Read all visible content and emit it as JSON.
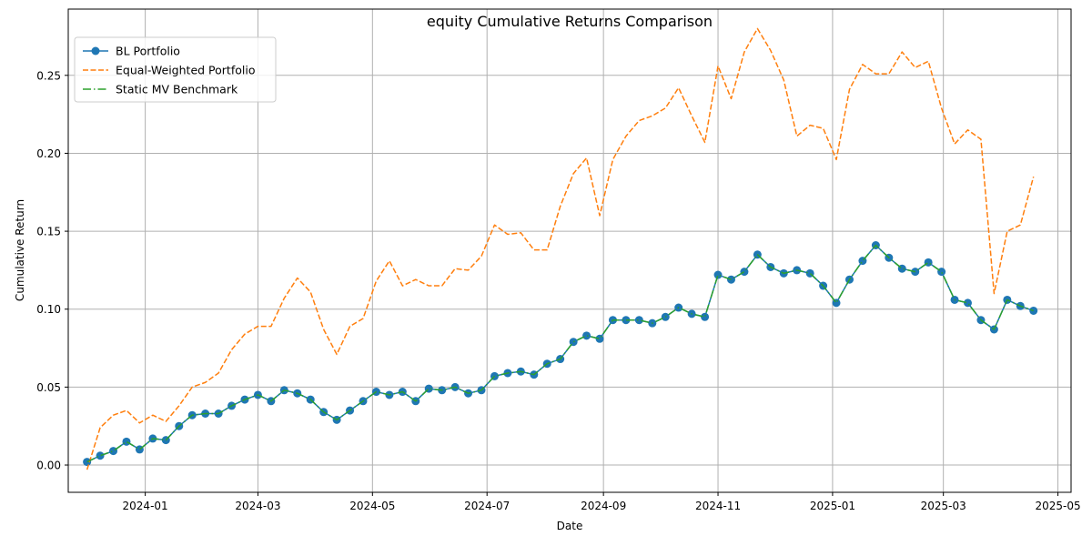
{
  "chart_data": {
    "type": "line",
    "title": "equity Cumulative Returns Comparison",
    "xlabel": "Date",
    "ylabel": "Cumulative Return",
    "grid": true,
    "legend_position": "top-left",
    "x_ticks": [
      "2024-01",
      "2024-03",
      "2024-05",
      "2024-07",
      "2024-09",
      "2024-11",
      "2025-01",
      "2025-03",
      "2025-05"
    ],
    "y_ticks": [
      "0.00",
      "0.05",
      "0.10",
      "0.15",
      "0.20",
      "0.25"
    ],
    "ylim": [
      -0.0175,
      0.2925
    ],
    "xlim": [
      "2023-11-21",
      "2025-05-08"
    ],
    "x": [
      "2023-12-01",
      "2023-12-08",
      "2023-12-15",
      "2023-12-22",
      "2023-12-29",
      "2024-01-05",
      "2024-01-12",
      "2024-01-19",
      "2024-01-26",
      "2024-02-02",
      "2024-02-09",
      "2024-02-16",
      "2024-02-23",
      "2024-03-01",
      "2024-03-08",
      "2024-03-15",
      "2024-03-22",
      "2024-03-29",
      "2024-04-05",
      "2024-04-12",
      "2024-04-19",
      "2024-04-26",
      "2024-05-03",
      "2024-05-10",
      "2024-05-17",
      "2024-05-24",
      "2024-05-31",
      "2024-06-07",
      "2024-06-14",
      "2024-06-21",
      "2024-06-28",
      "2024-07-05",
      "2024-07-12",
      "2024-07-19",
      "2024-07-26",
      "2024-08-02",
      "2024-08-09",
      "2024-08-16",
      "2024-08-23",
      "2024-08-30",
      "2024-09-06",
      "2024-09-13",
      "2024-09-20",
      "2024-09-27",
      "2024-10-04",
      "2024-10-11",
      "2024-10-18",
      "2024-10-25",
      "2024-11-01",
      "2024-11-08",
      "2024-11-15",
      "2024-11-22",
      "2024-11-29",
      "2024-12-06",
      "2024-12-13",
      "2024-12-20",
      "2024-12-27",
      "2025-01-03",
      "2025-01-10",
      "2025-01-17",
      "2025-01-24",
      "2025-01-31",
      "2025-02-07",
      "2025-02-14",
      "2025-02-21",
      "2025-02-28",
      "2025-03-07",
      "2025-03-14",
      "2025-03-21",
      "2025-03-28",
      "2025-04-04",
      "2025-04-11",
      "2025-04-18"
    ],
    "series": [
      {
        "name": "BL Portfolio",
        "color": "#1f77b4",
        "style": "solid-marker",
        "values": [
          0.002,
          0.006,
          0.009,
          0.015,
          0.01,
          0.017,
          0.016,
          0.025,
          0.032,
          0.033,
          0.033,
          0.038,
          0.042,
          0.045,
          0.041,
          0.048,
          0.046,
          0.042,
          0.034,
          0.029,
          0.035,
          0.041,
          0.047,
          0.045,
          0.047,
          0.041,
          0.049,
          0.048,
          0.05,
          0.046,
          0.048,
          0.057,
          0.059,
          0.06,
          0.058,
          0.065,
          0.068,
          0.079,
          0.083,
          0.081,
          0.093,
          0.093,
          0.093,
          0.091,
          0.095,
          0.101,
          0.097,
          0.095,
          0.122,
          0.119,
          0.124,
          0.135,
          0.127,
          0.123,
          0.125,
          0.123,
          0.115,
          0.104,
          0.119,
          0.131,
          0.141,
          0.133,
          0.126,
          0.124,
          0.13,
          0.124,
          0.106,
          0.104,
          0.093,
          0.087,
          0.106,
          0.102,
          0.099
        ]
      },
      {
        "name": "Equal-Weighted Portfolio",
        "color": "#ff7f0e",
        "style": "dashed",
        "values": [
          -0.003,
          0.024,
          0.032,
          0.035,
          0.027,
          0.032,
          0.028,
          0.038,
          0.05,
          0.053,
          0.059,
          0.074,
          0.084,
          0.089,
          0.089,
          0.107,
          0.12,
          0.111,
          0.087,
          0.071,
          0.089,
          0.094,
          0.118,
          0.131,
          0.115,
          0.119,
          0.115,
          0.115,
          0.126,
          0.125,
          0.134,
          0.154,
          0.148,
          0.149,
          0.138,
          0.138,
          0.166,
          0.187,
          0.197,
          0.16,
          0.196,
          0.211,
          0.221,
          0.224,
          0.229,
          0.242,
          0.224,
          0.207,
          0.256,
          0.235,
          0.265,
          0.28,
          0.266,
          0.247,
          0.211,
          0.218,
          0.216,
          0.196,
          0.241,
          0.257,
          0.251,
          0.251,
          0.265,
          0.255,
          0.259,
          0.229,
          0.206,
          0.215,
          0.209,
          0.11,
          0.15,
          0.154,
          0.185
        ]
      },
      {
        "name": "Static MV Benchmark",
        "color": "#2ca02c",
        "style": "dashdot",
        "values": [
          0.002,
          0.006,
          0.009,
          0.015,
          0.01,
          0.017,
          0.016,
          0.025,
          0.032,
          0.033,
          0.033,
          0.038,
          0.042,
          0.045,
          0.041,
          0.048,
          0.046,
          0.042,
          0.034,
          0.029,
          0.035,
          0.041,
          0.047,
          0.045,
          0.047,
          0.041,
          0.049,
          0.048,
          0.05,
          0.046,
          0.048,
          0.057,
          0.059,
          0.06,
          0.058,
          0.065,
          0.068,
          0.079,
          0.083,
          0.081,
          0.093,
          0.093,
          0.093,
          0.091,
          0.095,
          0.101,
          0.097,
          0.095,
          0.122,
          0.119,
          0.124,
          0.135,
          0.127,
          0.123,
          0.125,
          0.123,
          0.115,
          0.104,
          0.119,
          0.131,
          0.141,
          0.133,
          0.126,
          0.124,
          0.13,
          0.124,
          0.106,
          0.104,
          0.093,
          0.087,
          0.106,
          0.102,
          0.099
        ]
      }
    ]
  }
}
